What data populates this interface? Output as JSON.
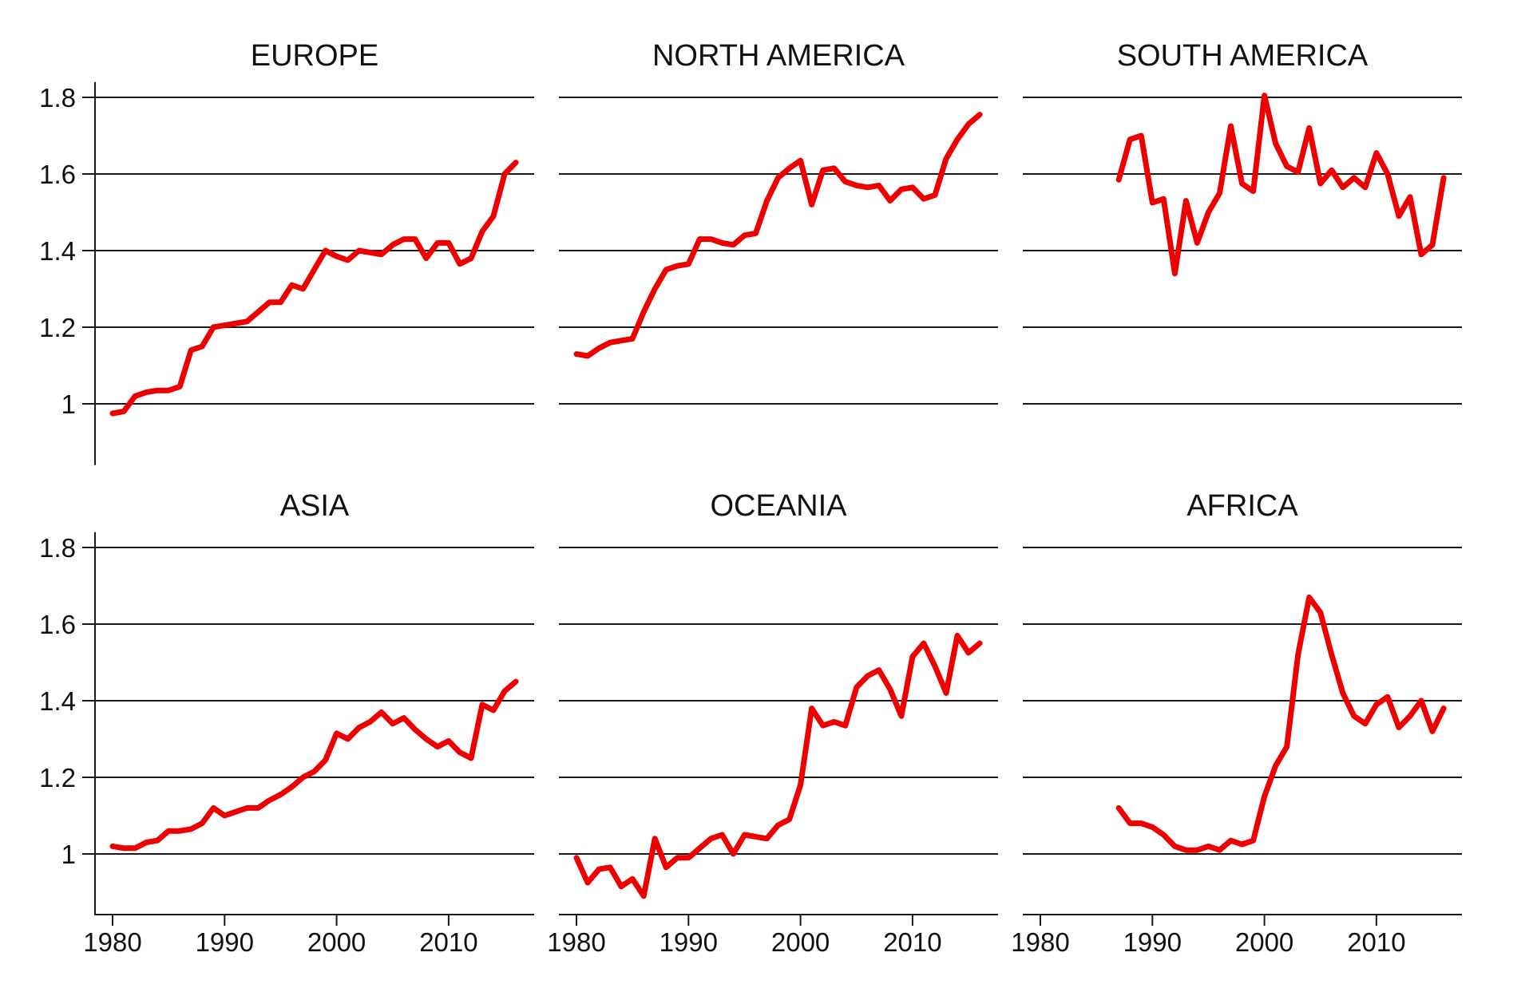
{
  "chart_data": {
    "type": "line",
    "layout": "small-multiples 2x3",
    "line_color": "#ee0000",
    "grid": true,
    "ylim": [
      0.84,
      1.84
    ],
    "xlim": [
      1978.4,
      2017.6
    ],
    "yticks": [
      1,
      1.2,
      1.4,
      1.6,
      1.8
    ],
    "ytick_labels": [
      "1",
      "1.2",
      "1.4",
      "1.6",
      "1.8"
    ],
    "xticks": [
      1980,
      1990,
      2000,
      2010
    ],
    "xtick_labels": [
      "1980",
      "1990",
      "2000",
      "2010"
    ],
    "panels": [
      {
        "title": "EUROPE",
        "start_year": 1980,
        "values": [
          0.975,
          0.98,
          1.02,
          1.03,
          1.035,
          1.035,
          1.045,
          1.14,
          1.15,
          1.2,
          1.205,
          1.21,
          1.215,
          1.24,
          1.265,
          1.265,
          1.31,
          1.3,
          1.35,
          1.4,
          1.385,
          1.375,
          1.4,
          1.395,
          1.39,
          1.415,
          1.43,
          1.43,
          1.38,
          1.42,
          1.42,
          1.365,
          1.38,
          1.45,
          1.49,
          1.6,
          1.63
        ]
      },
      {
        "title": "NORTH AMERICA",
        "start_year": 1980,
        "values": [
          1.13,
          1.125,
          1.145,
          1.16,
          1.165,
          1.17,
          1.24,
          1.3,
          1.35,
          1.36,
          1.365,
          1.43,
          1.43,
          1.42,
          1.415,
          1.44,
          1.445,
          1.53,
          1.59,
          1.615,
          1.635,
          1.52,
          1.61,
          1.615,
          1.58,
          1.57,
          1.565,
          1.57,
          1.53,
          1.56,
          1.565,
          1.535,
          1.545,
          1.64,
          1.69,
          1.73,
          1.755
        ]
      },
      {
        "title": "SOUTH AMERICA",
        "start_year": 1987,
        "values": [
          1.585,
          1.69,
          1.7,
          1.525,
          1.535,
          1.34,
          1.53,
          1.42,
          1.5,
          1.55,
          1.725,
          1.575,
          1.555,
          1.805,
          1.68,
          1.62,
          1.605,
          1.72,
          1.575,
          1.61,
          1.565,
          1.59,
          1.565,
          1.655,
          1.6,
          1.49,
          1.54,
          1.39,
          1.415,
          1.59
        ]
      },
      {
        "title": "ASIA",
        "start_year": 1980,
        "values": [
          1.02,
          1.015,
          1.015,
          1.03,
          1.035,
          1.06,
          1.06,
          1.065,
          1.08,
          1.12,
          1.1,
          1.11,
          1.12,
          1.12,
          1.14,
          1.155,
          1.175,
          1.2,
          1.215,
          1.245,
          1.315,
          1.3,
          1.33,
          1.345,
          1.37,
          1.34,
          1.355,
          1.325,
          1.3,
          1.28,
          1.295,
          1.265,
          1.25,
          1.39,
          1.375,
          1.425,
          1.45
        ]
      },
      {
        "title": "OCEANIA",
        "start_year": 1980,
        "values": [
          0.99,
          0.925,
          0.96,
          0.965,
          0.915,
          0.935,
          0.89,
          1.04,
          0.965,
          0.99,
          0.99,
          1.015,
          1.04,
          1.05,
          1.0,
          1.05,
          1.045,
          1.04,
          1.075,
          1.09,
          1.18,
          1.38,
          1.335,
          1.345,
          1.335,
          1.435,
          1.465,
          1.48,
          1.43,
          1.36,
          1.515,
          1.55,
          1.49,
          1.42,
          1.57,
          1.525,
          1.55
        ]
      },
      {
        "title": "AFRICA",
        "start_year": 1987,
        "values": [
          1.12,
          1.08,
          1.08,
          1.07,
          1.05,
          1.02,
          1.01,
          1.01,
          1.02,
          1.01,
          1.035,
          1.025,
          1.035,
          1.15,
          1.23,
          1.28,
          1.52,
          1.67,
          1.63,
          1.52,
          1.42,
          1.36,
          1.34,
          1.39,
          1.41,
          1.33,
          1.36,
          1.4,
          1.32,
          1.38
        ]
      }
    ]
  }
}
